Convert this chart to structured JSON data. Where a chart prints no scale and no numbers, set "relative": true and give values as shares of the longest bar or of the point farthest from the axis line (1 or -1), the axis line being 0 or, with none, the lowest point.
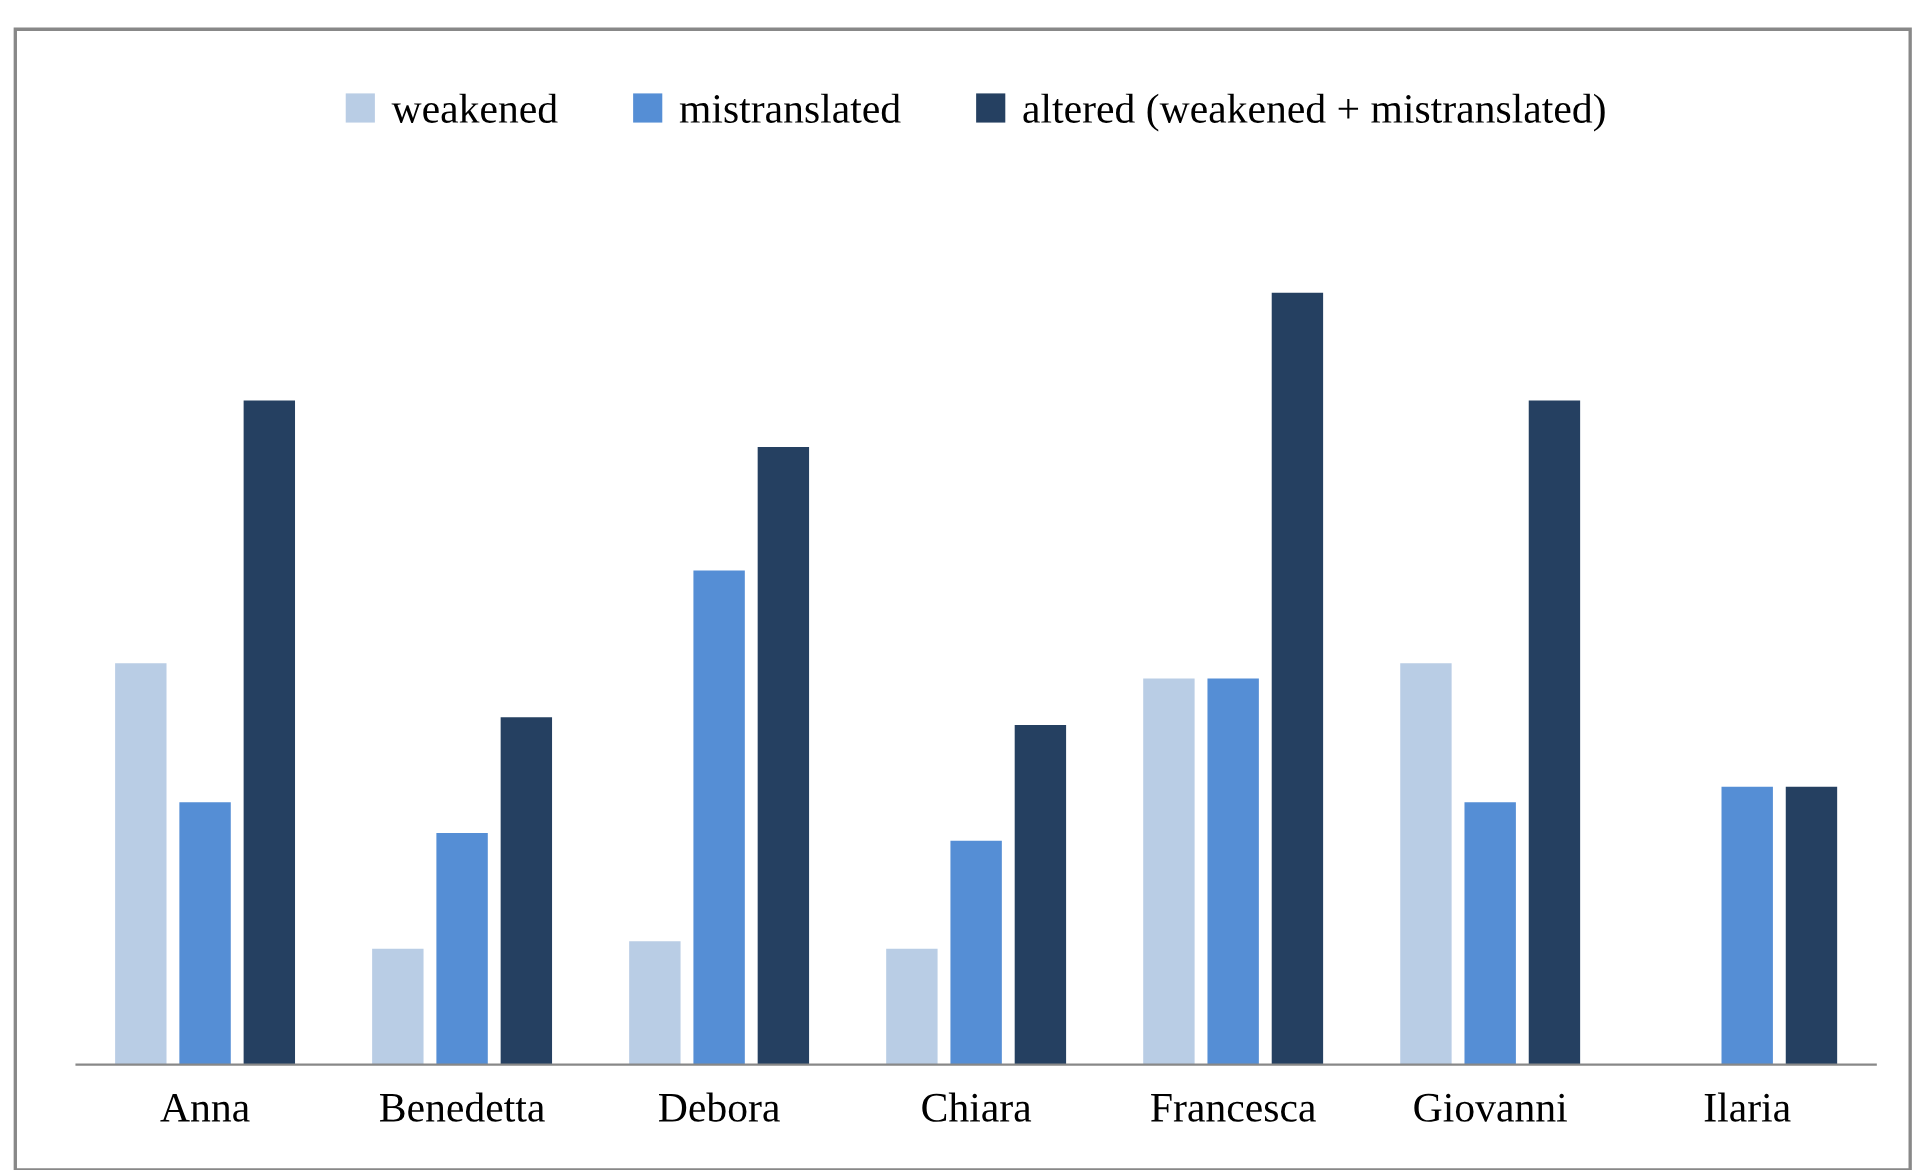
{
  "chart_data": {
    "type": "bar",
    "relative": true,
    "categories": [
      "Anna",
      "Benedetta",
      "Debora",
      "Chiara",
      "Francesca",
      "Giovanni",
      "Ilaria"
    ],
    "series": [
      {
        "name": "weakened",
        "color": "#b9cde5",
        "values": [
          0.52,
          0.15,
          0.16,
          0.15,
          0.5,
          0.52,
          0
        ]
      },
      {
        "name": "mistranslated",
        "color": "#558ed5",
        "values": [
          0.34,
          0.3,
          0.64,
          0.29,
          0.5,
          0.34,
          0.36
        ]
      },
      {
        "name": "altered (weakened + mistranslated)",
        "color": "#254061",
        "values": [
          0.86,
          0.45,
          0.8,
          0.44,
          1,
          0.86,
          0.36
        ]
      }
    ],
    "legend": "top",
    "grid": false
  }
}
